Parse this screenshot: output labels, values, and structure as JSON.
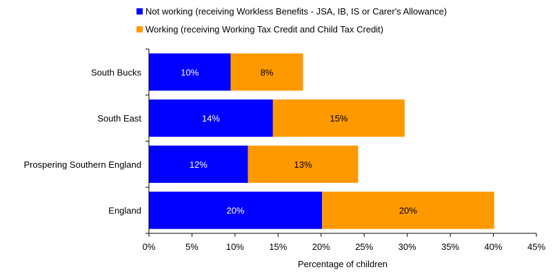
{
  "chart_data": {
    "type": "bar",
    "orientation": "horizontal",
    "stacked": true,
    "categories": [
      "South Bucks",
      "South East",
      "Prospering Southern England",
      "England"
    ],
    "series": [
      {
        "name": "Not working (receiving Workless Benefits - JSA, IB, IS or Carer's Allowance)",
        "color": "#0000ff",
        "label_color": "#ffffff",
        "values": [
          9.5,
          14.4,
          11.5,
          20.1
        ],
        "data_labels": [
          "10%",
          "14%",
          "12%",
          "20%"
        ]
      },
      {
        "name": "Working (receiving Working Tax Credit and Child Tax Credit)",
        "color": "#ff9900",
        "label_color": "#000000",
        "values": [
          8.4,
          15.3,
          12.8,
          20.0
        ],
        "data_labels": [
          "8%",
          "15%",
          "13%",
          "20%"
        ]
      }
    ],
    "xlabel": "Percentage of children",
    "ylabel": "",
    "xlim": [
      0,
      45
    ],
    "x_ticks": [
      "0%",
      "5%",
      "10%",
      "15%",
      "20%",
      "25%",
      "30%",
      "35%",
      "40%",
      "45%"
    ],
    "grid": false,
    "legend_position": "top"
  }
}
